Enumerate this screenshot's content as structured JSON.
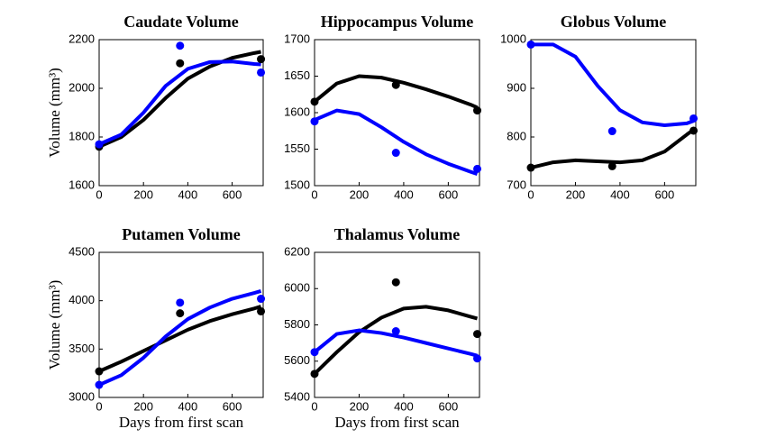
{
  "chart_data": [
    {
      "type": "line",
      "title": "Caudate Volume",
      "ylabel": "Volume (mm³)",
      "xlim": [
        0,
        740
      ],
      "ylim": [
        1600,
        2200
      ],
      "xticks": [
        0,
        200,
        400,
        600
      ],
      "yticks": [
        1600,
        1800,
        2000,
        2200
      ],
      "series": [
        {
          "mode": "line",
          "color": "#000000",
          "x": [
            0,
            100,
            200,
            300,
            400,
            500,
            600,
            700,
            730
          ],
          "values": [
            1760,
            1800,
            1870,
            1960,
            2040,
            2090,
            2125,
            2145,
            2150
          ]
        },
        {
          "mode": "line",
          "color": "#0000ff",
          "x": [
            0,
            100,
            200,
            300,
            400,
            500,
            600,
            700,
            730
          ],
          "values": [
            1770,
            1810,
            1900,
            2010,
            2080,
            2108,
            2110,
            2100,
            2098
          ]
        },
        {
          "mode": "marker",
          "color": "#000000",
          "x": [
            0,
            365,
            730
          ],
          "values": [
            1760,
            2103,
            2120
          ]
        },
        {
          "mode": "marker",
          "color": "#0000ff",
          "x": [
            0,
            365,
            730
          ],
          "values": [
            1770,
            2175,
            2065
          ]
        }
      ]
    },
    {
      "type": "line",
      "title": "Hippocampus Volume",
      "xlim": [
        0,
        740
      ],
      "ylim": [
        1500,
        1700
      ],
      "xticks": [
        0,
        200,
        400,
        600
      ],
      "yticks": [
        1500,
        1550,
        1600,
        1650,
        1700
      ],
      "series": [
        {
          "mode": "line",
          "color": "#000000",
          "x": [
            0,
            100,
            200,
            300,
            400,
            500,
            600,
            700,
            730
          ],
          "values": [
            1615,
            1640,
            1650,
            1648,
            1641,
            1632,
            1622,
            1611,
            1607
          ]
        },
        {
          "mode": "line",
          "color": "#0000ff",
          "x": [
            0,
            100,
            200,
            300,
            400,
            500,
            600,
            700,
            730
          ],
          "values": [
            1590,
            1603,
            1598,
            1580,
            1560,
            1543,
            1530,
            1519,
            1516
          ]
        },
        {
          "mode": "marker",
          "color": "#000000",
          "x": [
            0,
            365,
            730
          ],
          "values": [
            1615,
            1638,
            1603
          ]
        },
        {
          "mode": "marker",
          "color": "#0000ff",
          "x": [
            0,
            365,
            730
          ],
          "values": [
            1588,
            1545,
            1523
          ]
        }
      ]
    },
    {
      "type": "line",
      "title": "Globus Volume",
      "xlim": [
        0,
        740
      ],
      "ylim": [
        700,
        1000
      ],
      "xticks": [
        0,
        200,
        400,
        600
      ],
      "yticks": [
        700,
        800,
        900,
        1000
      ],
      "series": [
        {
          "mode": "line",
          "color": "#000000",
          "x": [
            0,
            100,
            200,
            300,
            400,
            500,
            600,
            700,
            730
          ],
          "values": [
            737,
            748,
            752,
            750,
            748,
            752,
            770,
            805,
            815
          ]
        },
        {
          "mode": "line",
          "color": "#0000ff",
          "x": [
            0,
            100,
            200,
            300,
            400,
            500,
            600,
            700,
            730
          ],
          "values": [
            990,
            990,
            965,
            905,
            855,
            830,
            824,
            828,
            833
          ]
        },
        {
          "mode": "marker",
          "color": "#000000",
          "x": [
            0,
            365,
            730
          ],
          "values": [
            737,
            740,
            813
          ]
        },
        {
          "mode": "marker",
          "color": "#0000ff",
          "x": [
            0,
            365,
            730
          ],
          "values": [
            990,
            812,
            838
          ]
        }
      ]
    },
    {
      "type": "line",
      "title": "Putamen Volume",
      "ylabel": "Volume (mm³)",
      "xlabel": "Days from first scan",
      "xlim": [
        0,
        740
      ],
      "ylim": [
        3000,
        4500
      ],
      "xticks": [
        0,
        200,
        400,
        600
      ],
      "yticks": [
        3000,
        3500,
        4000,
        4500
      ],
      "series": [
        {
          "mode": "line",
          "color": "#000000",
          "x": [
            0,
            100,
            200,
            300,
            400,
            500,
            600,
            700,
            730
          ],
          "values": [
            3270,
            3370,
            3480,
            3590,
            3700,
            3790,
            3860,
            3920,
            3940
          ]
        },
        {
          "mode": "line",
          "color": "#0000ff",
          "x": [
            0,
            100,
            200,
            300,
            400,
            500,
            600,
            700,
            730
          ],
          "values": [
            3130,
            3230,
            3410,
            3630,
            3810,
            3930,
            4020,
            4080,
            4100
          ]
        },
        {
          "mode": "marker",
          "color": "#000000",
          "x": [
            0,
            365,
            730
          ],
          "values": [
            3270,
            3870,
            3890
          ]
        },
        {
          "mode": "marker",
          "color": "#0000ff",
          "x": [
            0,
            365,
            730
          ],
          "values": [
            3130,
            3980,
            4020
          ]
        }
      ]
    },
    {
      "type": "line",
      "title": "Thalamus Volume",
      "xlabel": "Days from first scan",
      "xlim": [
        0,
        740
      ],
      "ylim": [
        5400,
        6200
      ],
      "xticks": [
        0,
        200,
        400,
        600
      ],
      "yticks": [
        5400,
        5600,
        5800,
        6000,
        6200
      ],
      "series": [
        {
          "mode": "line",
          "color": "#000000",
          "x": [
            0,
            100,
            200,
            300,
            400,
            500,
            600,
            700,
            730
          ],
          "values": [
            5530,
            5650,
            5760,
            5840,
            5890,
            5900,
            5880,
            5845,
            5835
          ]
        },
        {
          "mode": "line",
          "color": "#0000ff",
          "x": [
            0,
            100,
            200,
            300,
            400,
            500,
            600,
            700,
            730
          ],
          "values": [
            5650,
            5750,
            5770,
            5755,
            5730,
            5700,
            5670,
            5640,
            5630
          ]
        },
        {
          "mode": "marker",
          "color": "#000000",
          "x": [
            0,
            365,
            730
          ],
          "values": [
            5530,
            6035,
            5750
          ]
        },
        {
          "mode": "marker",
          "color": "#0000ff",
          "x": [
            0,
            365,
            730
          ],
          "values": [
            5650,
            5765,
            5615
          ]
        }
      ]
    }
  ]
}
